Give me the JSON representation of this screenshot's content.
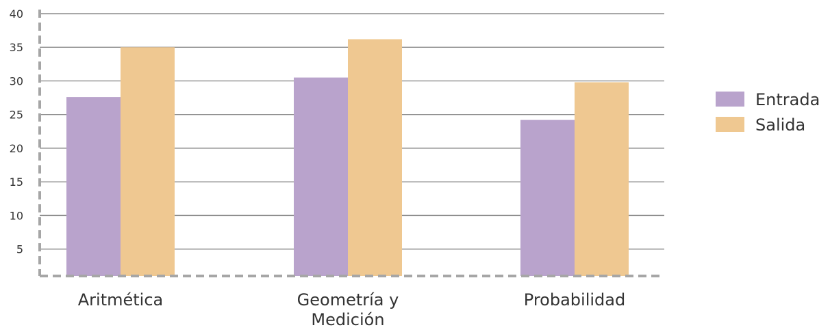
{
  "chart_data": {
    "type": "bar",
    "categories": [
      "Aritmética",
      "Geometría y Medición",
      "Probabilidad"
    ],
    "category_label_lines": [
      [
        "Aritmética"
      ],
      [
        "Geometría y",
        "Medición"
      ],
      [
        "Probabilidad"
      ]
    ],
    "series": [
      {
        "name": "Entrada",
        "values": [
          27.6,
          30.5,
          24.2
        ]
      },
      {
        "name": "Salida",
        "values": [
          35.0,
          36.2,
          29.8
        ]
      }
    ],
    "ylim": [
      1,
      40
    ],
    "yticks": [
      5,
      10,
      15,
      20,
      25,
      30,
      35,
      40
    ],
    "grid": true,
    "legend_position": "right",
    "title": "",
    "xlabel": "",
    "ylabel": ""
  },
  "colors": {
    "series": [
      "#b9a3cc",
      "#efc891"
    ],
    "grid": "#8c8c8c",
    "axis": "#a6a6a6",
    "text": "#333333"
  }
}
